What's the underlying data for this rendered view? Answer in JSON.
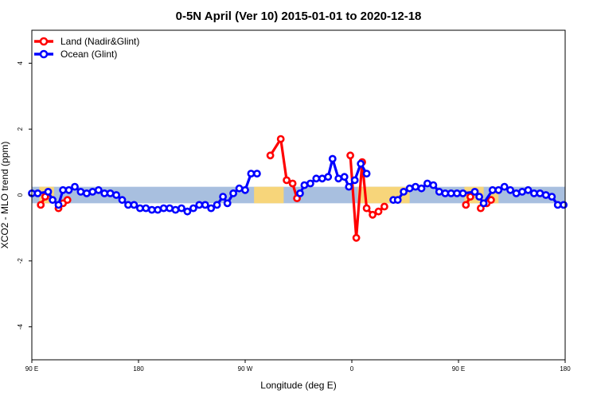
{
  "chart_data": {
    "type": "line",
    "title": "0-5N April (Ver 10)   2015-01-01 to 2020-12-18",
    "xlabel": "Longitude (deg E)",
    "ylabel": "XCO2 - MLO trend (ppm)",
    "xlim": [
      90,
      450
    ],
    "ylim": [
      -5,
      5
    ],
    "x_ticks": [
      90,
      162,
      234,
      306,
      378,
      450
    ],
    "x_tick_labels": [
      "90 E",
      "180",
      "90 W",
      "0",
      "90 E",
      "180"
    ],
    "y_ticks": [
      -4,
      -2,
      0,
      2,
      4
    ],
    "y_tick_labels": [
      "-4",
      "-2",
      "0",
      "2",
      "4"
    ],
    "grid": false,
    "legend_position": "top-left",
    "colors": {
      "land": "#ff0000",
      "ocean": "#0000ff",
      "ocean_band": "#a8bfdf",
      "land_band": "#f7d57a"
    },
    "background_band": {
      "y_range": [
        -0.25,
        0.25
      ],
      "land_segments": [
        [
          95,
          105
        ],
        [
          240,
          260
        ],
        [
          310,
          345
        ],
        [
          382,
          395
        ],
        [
          399,
          405
        ]
      ]
    },
    "series": [
      {
        "name": "Land (Nadir&Glint)",
        "key": "land",
        "segments": [
          [
            [
              96,
              -0.3
            ],
            [
              99,
              -0.05
            ]
          ],
          [
            [
              108,
              -0.4
            ],
            [
              111,
              -0.25
            ],
            [
              114,
              -0.15
            ]
          ],
          [
            [
              251,
              1.2
            ],
            [
              258,
              1.7
            ],
            [
              262,
              0.45
            ],
            [
              266,
              0.35
            ],
            [
              269,
              -0.1
            ]
          ],
          [
            [
              305,
              1.2
            ],
            [
              309,
              -1.3
            ],
            [
              313,
              1.0
            ],
            [
              316,
              -0.4
            ],
            [
              320,
              -0.6
            ],
            [
              324,
              -0.5
            ],
            [
              328,
              -0.35
            ]
          ],
          [
            [
              383,
              -0.3
            ],
            [
              386,
              -0.05
            ]
          ],
          [
            [
              393,
              -0.4
            ],
            [
              397,
              -0.25
            ],
            [
              400,
              -0.15
            ]
          ]
        ]
      },
      {
        "name": "Ocean (Glint)",
        "key": "ocean",
        "segments": [
          [
            [
              90,
              0.05
            ],
            [
              94,
              0.05
            ],
            [
              101,
              0.1
            ],
            [
              104,
              -0.15
            ],
            [
              108,
              -0.3
            ],
            [
              111,
              0.15
            ],
            [
              115,
              0.15
            ],
            [
              119,
              0.25
            ],
            [
              123,
              0.1
            ],
            [
              127,
              0.05
            ],
            [
              131,
              0.1
            ],
            [
              135,
              0.15
            ],
            [
              139,
              0.05
            ],
            [
              143,
              0.05
            ],
            [
              147,
              0.0
            ],
            [
              151,
              -0.15
            ],
            [
              155,
              -0.3
            ],
            [
              159,
              -0.3
            ],
            [
              163,
              -0.4
            ],
            [
              167,
              -0.4
            ],
            [
              171,
              -0.45
            ],
            [
              175,
              -0.45
            ],
            [
              179,
              -0.4
            ],
            [
              183,
              -0.4
            ],
            [
              187,
              -0.45
            ],
            [
              191,
              -0.4
            ],
            [
              195,
              -0.5
            ],
            [
              199,
              -0.4
            ],
            [
              203,
              -0.3
            ],
            [
              207,
              -0.3
            ],
            [
              211,
              -0.4
            ],
            [
              215,
              -0.3
            ],
            [
              219,
              -0.05
            ],
            [
              222,
              -0.25
            ],
            [
              226,
              0.05
            ],
            [
              230,
              0.2
            ],
            [
              234,
              0.15
            ],
            [
              238,
              0.65
            ],
            [
              242,
              0.65
            ]
          ],
          [
            [
              271,
              0.05
            ],
            [
              274,
              0.3
            ],
            [
              278,
              0.35
            ],
            [
              282,
              0.5
            ],
            [
              286,
              0.5
            ],
            [
              290,
              0.55
            ],
            [
              293,
              1.1
            ],
            [
              297,
              0.5
            ],
            [
              301,
              0.55
            ],
            [
              304,
              0.25
            ],
            [
              308,
              0.45
            ],
            [
              312,
              0.95
            ],
            [
              316,
              0.65
            ]
          ],
          [
            [
              334,
              -0.15
            ],
            [
              337,
              -0.15
            ],
            [
              341,
              0.1
            ],
            [
              345,
              0.2
            ],
            [
              349,
              0.25
            ],
            [
              353,
              0.2
            ],
            [
              357,
              0.35
            ],
            [
              361,
              0.3
            ],
            [
              365,
              0.1
            ],
            [
              369,
              0.05
            ],
            [
              373,
              0.05
            ],
            [
              377,
              0.05
            ],
            [
              381,
              0.05
            ],
            [
              389,
              0.1
            ],
            [
              392,
              -0.05
            ],
            [
              395,
              -0.25
            ],
            [
              401,
              0.15
            ],
            [
              405,
              0.15
            ],
            [
              409,
              0.25
            ],
            [
              413,
              0.15
            ],
            [
              417,
              0.05
            ],
            [
              421,
              0.1
            ],
            [
              425,
              0.15
            ],
            [
              429,
              0.05
            ],
            [
              433,
              0.05
            ],
            [
              437,
              0.0
            ],
            [
              441,
              -0.05
            ],
            [
              445,
              -0.3
            ],
            [
              449,
              -0.3
            ]
          ]
        ]
      }
    ]
  }
}
